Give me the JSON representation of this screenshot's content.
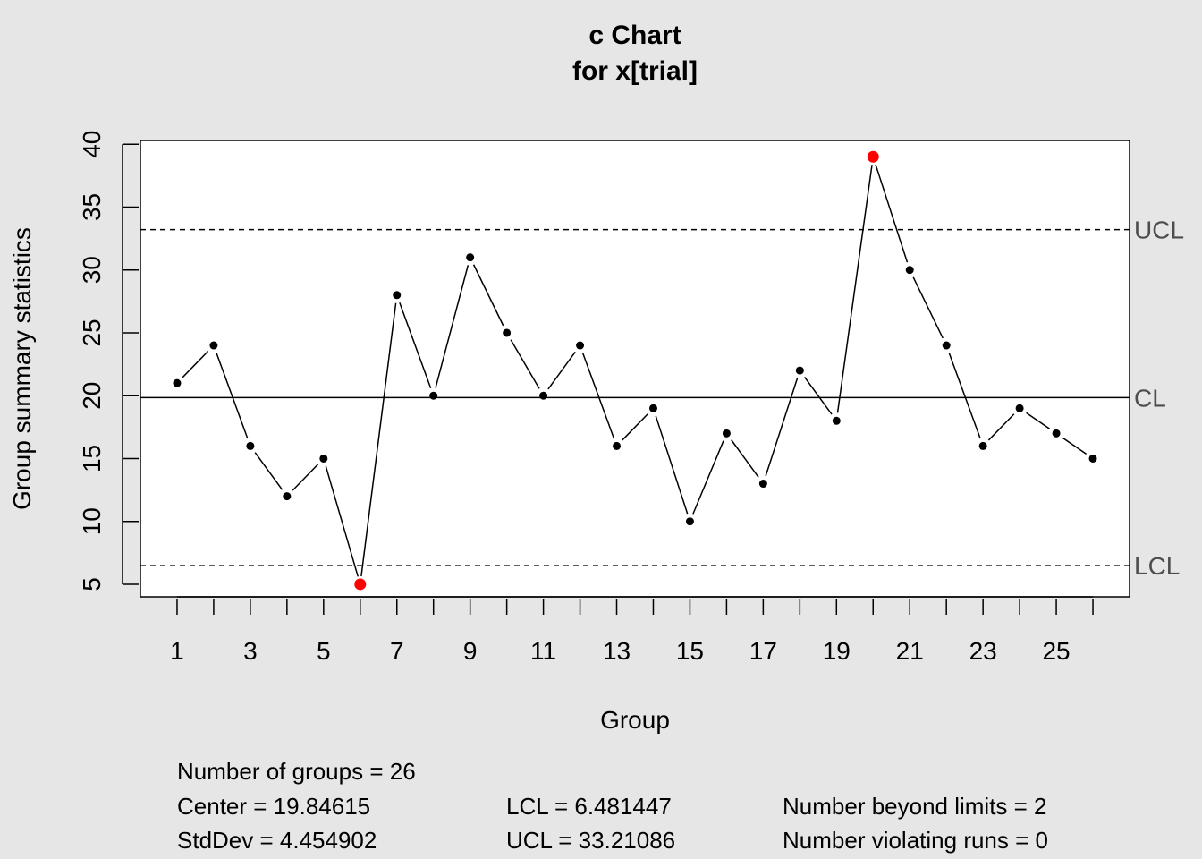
{
  "chart_data": {
    "type": "line",
    "title": "c Chart",
    "subtitle": "for x[trial]",
    "xlabel": "Group",
    "ylabel": "Group summary statistics",
    "x": [
      1,
      2,
      3,
      4,
      5,
      6,
      7,
      8,
      9,
      10,
      11,
      12,
      13,
      14,
      15,
      16,
      17,
      18,
      19,
      20,
      21,
      22,
      23,
      24,
      25,
      26
    ],
    "values": [
      21,
      24,
      16,
      12,
      15,
      5,
      28,
      20,
      31,
      25,
      20,
      24,
      16,
      19,
      10,
      17,
      13,
      22,
      18,
      39,
      30,
      24,
      16,
      19,
      17,
      15
    ],
    "xlim": [
      0,
      27
    ],
    "ylim": [
      4.0,
      40.3
    ],
    "x_ticks": [
      1,
      2,
      3,
      4,
      5,
      6,
      7,
      8,
      9,
      10,
      11,
      12,
      13,
      14,
      15,
      16,
      17,
      18,
      19,
      20,
      21,
      22,
      23,
      24,
      25,
      26
    ],
    "x_tick_labels": [
      "1",
      "3",
      "5",
      "7",
      "9",
      "11",
      "13",
      "15",
      "17",
      "19",
      "21",
      "23",
      "25"
    ],
    "y_ticks": [
      "5",
      "10",
      "15",
      "20",
      "25",
      "30",
      "35",
      "40"
    ],
    "center": 19.84615,
    "lcl": 6.481447,
    "ucl": 33.21086,
    "limit_labels": {
      "ucl": "UCL",
      "cl": "CL",
      "lcl": "LCL"
    },
    "out_of_control": [
      6,
      20
    ],
    "point_color": "#000000",
    "violation_color": "#ff0000",
    "grid": false
  },
  "stats": {
    "groups": "Number of groups = 26",
    "center": "Center = 19.84615",
    "stddev": "StdDev = 4.454902",
    "lcl": "LCL = 6.481447",
    "ucl": "UCL = 33.21086",
    "beyond": "Number beyond limits = 2",
    "violating": "Number violating runs = 0"
  }
}
